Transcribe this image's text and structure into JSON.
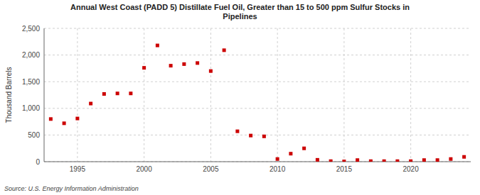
{
  "chart_data": {
    "type": "scatter",
    "title": "Annual West Coast (PADD 5) Distillate Fuel Oil, Greater than 15 to 500 ppm Sulfur Stocks in\nPipelines",
    "ylabel": "Thousand Barrels",
    "source": "Source: U.S. Energy Information Administration",
    "x": [
      1993,
      1994,
      1995,
      1996,
      1997,
      1998,
      1999,
      2000,
      2001,
      2002,
      2003,
      2004,
      2005,
      2006,
      2007,
      2008,
      2009,
      2010,
      2011,
      2012,
      2013,
      2014,
      2015,
      2016,
      2017,
      2018,
      2019,
      2020,
      2021,
      2022,
      2023,
      2024
    ],
    "values": [
      800,
      720,
      810,
      1090,
      1270,
      1280,
      1280,
      1760,
      2180,
      1800,
      1830,
      1850,
      1700,
      2090,
      570,
      490,
      475,
      50,
      150,
      250,
      35,
      10,
      5,
      30,
      10,
      10,
      10,
      10,
      30,
      30,
      50,
      90
    ],
    "color": "#cc0000",
    "marker": "square",
    "xlim": [
      1992.5,
      2024.5
    ],
    "xticks": [
      1995,
      2000,
      2005,
      2010,
      2015,
      2020
    ],
    "ylim": [
      0,
      2500
    ],
    "yticks": [
      0,
      500,
      {
        "value": 1000,
        "label": "1,000"
      },
      {
        "value": 1500,
        "label": "1,500"
      },
      {
        "value": 2000,
        "label": "2,000"
      },
      {
        "value": 2500,
        "label": "2,500"
      }
    ],
    "grid": true
  }
}
